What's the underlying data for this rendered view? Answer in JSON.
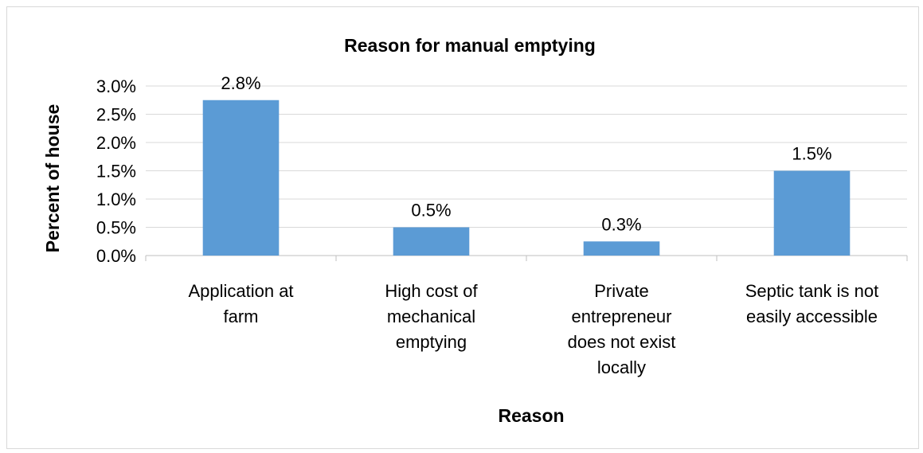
{
  "chart_data": {
    "type": "bar",
    "title": "Reason for manual emptying",
    "xlabel": "Reason",
    "ylabel": "Percent of house",
    "categories": [
      [
        "Application at",
        "farm"
      ],
      [
        "High cost of",
        "mechanical",
        "emptying"
      ],
      [
        "Private",
        "entrepreneur",
        "does not exist",
        "locally"
      ],
      [
        "Septic tank is not",
        "easily accessible"
      ]
    ],
    "series": [
      {
        "values": [
          2.75,
          0.5,
          0.25,
          1.5
        ],
        "data_labels": [
          "2.8%",
          "0.5%",
          "0.3%",
          "1.5%"
        ]
      }
    ],
    "y_ticks": [
      "0.0%",
      "0.5%",
      "1.0%",
      "1.5%",
      "2.0%",
      "2.5%",
      "3.0%"
    ],
    "ylim": [
      0,
      3.0
    ],
    "grid": true,
    "legend": "none",
    "colors": {
      "bar": "#5b9bd5",
      "grid": "#d9d9d9",
      "axis": "#bfbfbf"
    }
  }
}
